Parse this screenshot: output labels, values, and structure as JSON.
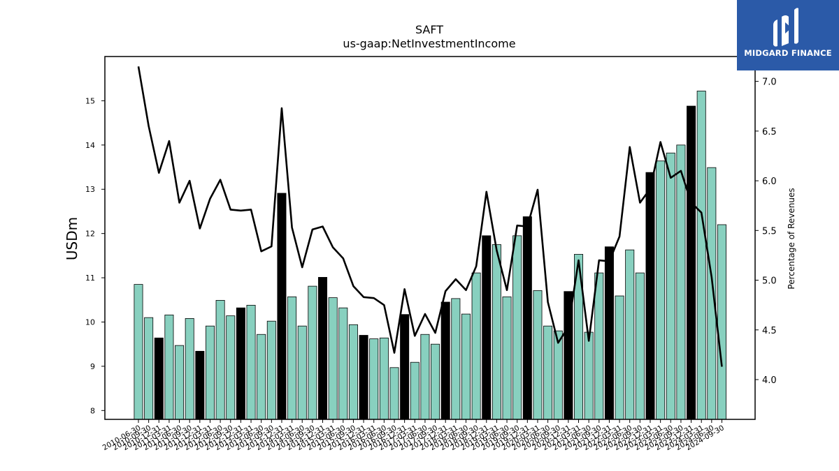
{
  "chart_data": {
    "type": "bar+line",
    "title": "SAFT",
    "subtitle": "us-gaap:NetInvestmentIncome",
    "ylabel": "USDm",
    "y2label": "Percentage of Revenues",
    "ylim": [
      7.8,
      16.0
    ],
    "y2lim": [
      3.6,
      7.25
    ],
    "yticks": [
      8,
      9,
      10,
      11,
      12,
      13,
      14,
      15
    ],
    "y2ticks": [
      4.0,
      4.5,
      5.0,
      5.5,
      6.0,
      6.5,
      7.0
    ],
    "categories": [
      "2010-06-30",
      "2010-09-30",
      "2010-12-31",
      "2011-03-31",
      "2011-06-30",
      "2011-09-30",
      "2011-12-31",
      "2012-03-31",
      "2012-06-30",
      "2012-09-30",
      "2012-12-31",
      "2013-03-31",
      "2013-06-30",
      "2013-09-30",
      "2013-12-31",
      "2014-03-31",
      "2014-06-30",
      "2014-09-30",
      "2014-12-31",
      "2015-03-31",
      "2015-06-30",
      "2015-09-30",
      "2015-12-31",
      "2016-03-31",
      "2016-06-30",
      "2016-09-30",
      "2016-12-31",
      "2017-03-31",
      "2017-06-30",
      "2017-09-30",
      "2017-12-31",
      "2018-03-31",
      "2018-06-30",
      "2018-09-30",
      "2018-12-31",
      "2019-03-31",
      "2019-06-30",
      "2019-09-30",
      "2019-12-31",
      "2020-03-31",
      "2020-06-30",
      "2020-09-30",
      "2020-12-31",
      "2021-03-31",
      "2021-06-30",
      "2021-09-30",
      "2021-12-31",
      "2022-03-31",
      "2022-06-30",
      "2022-09-30",
      "2022-12-31",
      "2023-03-31",
      "2023-06-30",
      "2023-09-30",
      "2023-12-31",
      "2024-03-31",
      "2024-06-30",
      "2024-09-30"
    ],
    "xtick_labels": [
      "2010-06-30",
      "2010-09-30",
      "2010-12-31",
      "2011-03-31",
      "2011-06-30",
      "2011-09-30",
      "2011-12-31",
      "2012-03-31",
      "2012-06-30",
      "2012-09-30",
      "2012-12-31",
      "2013-03-31",
      "2013-06-30",
      "2013-09-30",
      "2013-12-31",
      "2014-03-31",
      "2014-06-30",
      "2014-09-30",
      "2014-12-31",
      "2015-03-31",
      "2015-06-30",
      "2015-09-30",
      "2015-12-31",
      "2016-03-31",
      "2016-06-30",
      "2016-09-30",
      "2016-12-31",
      "2017-03-31",
      "2017-06-30",
      "2017-09-30",
      "2017-12-31",
      "2018-03-31",
      "2018-06-30",
      "2018-09-30",
      "2018-12-31",
      "2019-03-31",
      "2019-06-30",
      "2019-09-30",
      "2019-12-31",
      "2020-03-31",
      "2020-06-30",
      "2020-09-30",
      "2020-12-31",
      "2021-03-31",
      "2021-06-30",
      "2021-09-30",
      "2021-12-31",
      "2022-03-31",
      "2022-06-30",
      "2022-09-30",
      "2022-12-31",
      "2023-03-31",
      "2023-06-30",
      "2023-09-30",
      "2023-12-31",
      "2024-03-31",
      "2024-06-30",
      "2024-09-30"
    ],
    "series": [
      {
        "type": "bar",
        "axis": "left",
        "values": [
          10.85,
          10.1,
          9.64,
          10.16,
          9.47,
          10.08,
          9.34,
          9.91,
          10.49,
          10.14,
          10.32,
          10.38,
          9.72,
          10.02,
          12.91,
          10.57,
          9.91,
          10.81,
          11.01,
          10.55,
          10.32,
          9.94,
          9.7,
          9.62,
          9.64,
          8.97,
          10.17,
          9.09,
          9.72,
          9.5,
          10.45,
          10.53,
          10.18,
          11.11,
          11.95,
          11.75,
          10.57,
          11.95,
          12.38,
          10.71,
          9.91,
          9.8,
          10.69,
          11.53,
          9.77,
          11.11,
          11.7,
          10.59,
          11.63,
          11.11,
          13.38,
          13.64,
          13.82,
          14.0,
          14.88,
          15.22,
          13.49,
          12.2
        ],
        "highlight": [
          false,
          false,
          true,
          false,
          false,
          false,
          true,
          false,
          false,
          false,
          true,
          false,
          false,
          false,
          true,
          false,
          false,
          false,
          true,
          false,
          false,
          false,
          true,
          false,
          false,
          false,
          true,
          false,
          false,
          false,
          true,
          false,
          false,
          false,
          true,
          false,
          false,
          false,
          true,
          false,
          false,
          false,
          true,
          false,
          false,
          false,
          true,
          false,
          false,
          false,
          true,
          false,
          false,
          false,
          true,
          false,
          false,
          false
        ]
      },
      {
        "type": "line",
        "axis": "right",
        "values": [
          7.15,
          6.55,
          6.08,
          6.4,
          5.78,
          6.0,
          5.52,
          5.82,
          6.01,
          5.71,
          5.7,
          5.71,
          5.29,
          5.34,
          6.73,
          5.53,
          5.13,
          5.51,
          5.54,
          5.33,
          5.22,
          4.94,
          4.83,
          4.82,
          4.75,
          4.27,
          4.91,
          4.44,
          4.66,
          4.47,
          4.89,
          5.01,
          4.9,
          5.14,
          5.89,
          5.3,
          4.9,
          5.55,
          5.54,
          5.91,
          4.78,
          4.37,
          4.53,
          5.2,
          4.39,
          5.2,
          5.19,
          5.44,
          6.34,
          5.78,
          5.92,
          6.39,
          6.03,
          6.1,
          5.78,
          5.68,
          5.03,
          4.13
        ]
      }
    ],
    "colors": {
      "bar": "#88d0bf",
      "bar_highlight": "#000000",
      "line": "#000000",
      "frame": "#000000"
    },
    "grid": false,
    "legend": "none"
  },
  "logo": {
    "text": "MIDGARD FINANCE",
    "background": "#2b5aa8"
  }
}
